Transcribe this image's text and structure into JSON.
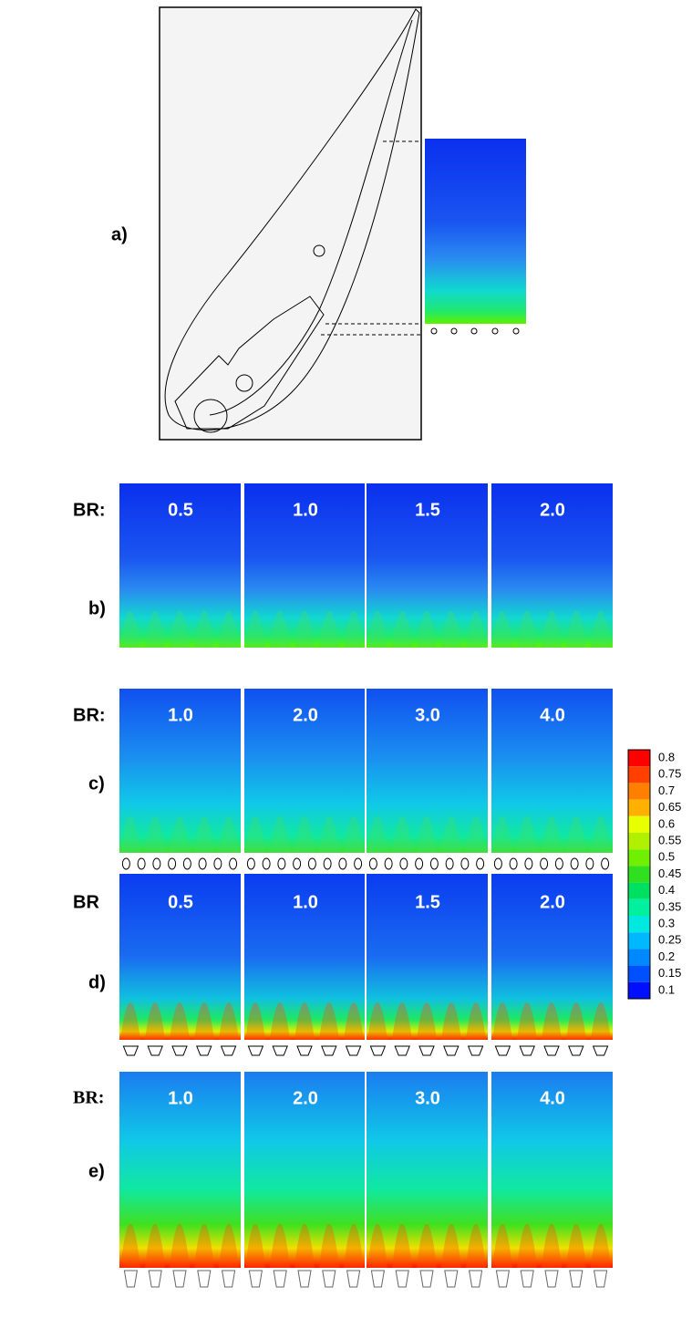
{
  "panels": [
    {
      "label": "a)"
    },
    {
      "label": "b)",
      "prefix": "BR:",
      "values": [
        "0.5",
        "1.0",
        "1.5",
        "2.0"
      ]
    },
    {
      "label": "c)",
      "prefix": "BR:",
      "values": [
        "1.0",
        "2.0",
        "3.0",
        "4.0"
      ]
    },
    {
      "label": "d)",
      "prefix": "BR",
      "values": [
        "0.5",
        "1.0",
        "1.5",
        "2.0"
      ]
    },
    {
      "label": "e)",
      "prefix": "BR:",
      "values": [
        "1.0",
        "2.0",
        "3.0",
        "4.0"
      ]
    }
  ],
  "colorbar": {
    "labels": [
      "0.8",
      "0.75",
      "0.7",
      "0.65",
      "0.6",
      "0.55",
      "0.5",
      "0.45",
      "0.4",
      "0.35",
      "0.3",
      "0.25",
      "0.2",
      "0.15",
      "0.1"
    ]
  }
}
